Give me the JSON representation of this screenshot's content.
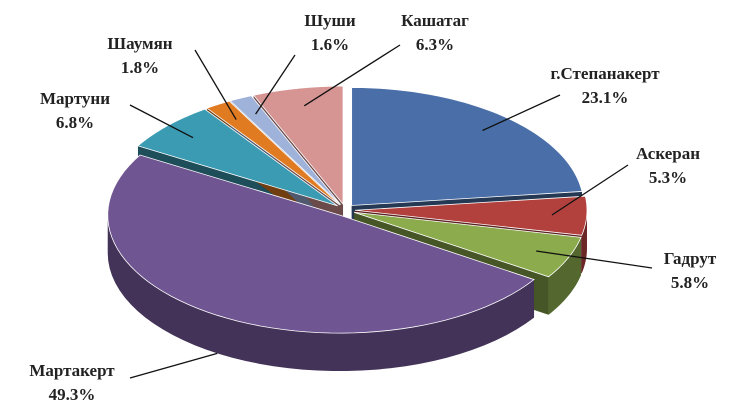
{
  "chart_data": {
    "type": "pie",
    "categories": [
      "г.Степанакерт",
      "Аскеран",
      "Гадрут",
      "Мартакерт",
      "Мартуни",
      "Шаумян",
      "Шуши",
      "Кашатаг"
    ],
    "values": [
      23.1,
      5.3,
      5.8,
      49.3,
      6.8,
      1.8,
      1.6,
      6.3
    ],
    "value_labels": [
      "23.1%",
      "5.3%",
      "5.8%",
      "49.3%",
      "6.8%",
      "1.8%",
      "1.6%",
      "6.3%"
    ],
    "colors": [
      "#4a6fa8",
      "#b2413e",
      "#8bab4c",
      "#6f5592",
      "#3b9bb3",
      "#e07b22",
      "#9fb2da",
      "#d69493"
    ]
  }
}
